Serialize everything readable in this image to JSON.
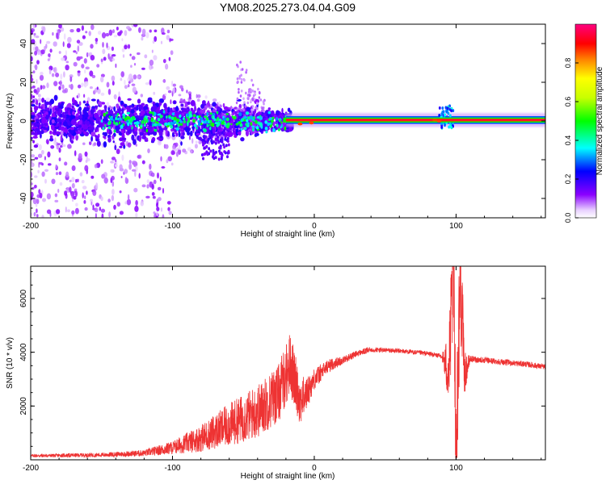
{
  "title": "YM08.2025.273.04.04.G09",
  "chart_data": [
    {
      "type": "heatmap",
      "xlabel": "Height of straight line (km)",
      "ylabel": "Frequency (Hz)",
      "xlim": [
        -200,
        163
      ],
      "ylim": [
        -50,
        50
      ],
      "x_ticks": [
        -200,
        -100,
        0,
        100
      ],
      "x_tick_labels": [
        "-200",
        "-100",
        "0",
        "100"
      ],
      "y_ticks": [
        -40,
        -20,
        0,
        20,
        40
      ],
      "y_tick_labels": [
        "-40",
        "-20",
        "0",
        "20",
        "40"
      ],
      "colorbar": {
        "label": "Normalized spectral amplitude",
        "range": [
          0,
          1
        ],
        "ticks": [
          0.0,
          0.2,
          0.4,
          0.6,
          0.8
        ],
        "tick_labels": [
          "0.0",
          "0.2",
          "0.4",
          "0.6",
          "0.8"
        ],
        "colormap": [
          "#ffffff",
          "#8a00ff",
          "#0000ff",
          "#00ffff",
          "#00ff00",
          "#ffff00",
          "#ff8000",
          "#ff0000",
          "#ff0080"
        ]
      },
      "features": [
        {
          "name": "scatter",
          "x_range": [
            -200,
            -100
          ],
          "y_range": [
            -50,
            50
          ],
          "amplitude": 0.05
        },
        {
          "name": "wide band",
          "x_range": [
            -200,
            -40
          ],
          "y_range": [
            -8,
            8
          ],
          "amplitude": 0.15
        },
        {
          "name": "carrier",
          "x_range": [
            -20,
            163
          ],
          "y_center": 0.5,
          "amplitude": 0.95
        },
        {
          "name": "spike",
          "x_range": [
            90,
            98
          ],
          "y_range": [
            -5,
            8
          ],
          "amplitude": 0.3
        }
      ]
    },
    {
      "type": "line",
      "xlabel": "Height of straight line (km)",
      "ylabel": "SNR (10 * v/v)",
      "xlim": [
        -200,
        163
      ],
      "ylim": [
        0,
        7200
      ],
      "x_ticks": [
        -200,
        -100,
        0,
        100
      ],
      "x_tick_labels": [
        "-200",
        "-100",
        "0",
        "100"
      ],
      "y_ticks": [
        2000,
        4000,
        6000
      ],
      "y_tick_labels": [
        "2000",
        "4000",
        "6000"
      ],
      "color": "#ee3333",
      "series": [
        {
          "x": [
            -200,
            -150,
            -120,
            -100,
            -80,
            -60,
            -40,
            -25,
            -17,
            -10,
            -5,
            0,
            10,
            20,
            30,
            40,
            60,
            80,
            90,
            95,
            98,
            100,
            103,
            106,
            110,
            130,
            150,
            163
          ],
          "y": [
            150,
            180,
            250,
            450,
            800,
            1300,
            1800,
            2500,
            3600,
            2200,
            2500,
            3000,
            3500,
            3700,
            3950,
            4100,
            4050,
            3950,
            3850,
            3300,
            7000,
            500,
            6900,
            3200,
            3750,
            3650,
            3550,
            3450
          ],
          "noise": [
            60,
            80,
            120,
            250,
            500,
            800,
            1000,
            1100,
            1200,
            900,
            600,
            400,
            250,
            150,
            120,
            100,
            90,
            90,
            90,
            1500,
            2500,
            2500,
            2500,
            800,
            120,
            110,
            110,
            100
          ]
        }
      ]
    }
  ]
}
